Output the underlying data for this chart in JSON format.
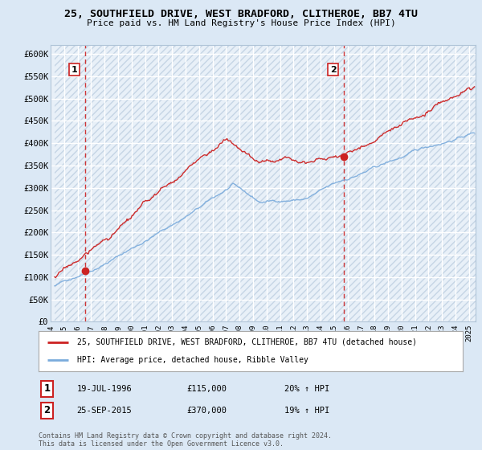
{
  "title1": "25, SOUTHFIELD DRIVE, WEST BRADFORD, CLITHEROE, BB7 4TU",
  "title2": "Price paid vs. HM Land Registry's House Price Index (HPI)",
  "ylim": [
    0,
    620000
  ],
  "yticks": [
    0,
    50000,
    100000,
    150000,
    200000,
    250000,
    300000,
    350000,
    400000,
    450000,
    500000,
    550000,
    600000
  ],
  "ytick_labels": [
    "£0",
    "£50K",
    "£100K",
    "£150K",
    "£200K",
    "£250K",
    "£300K",
    "£350K",
    "£400K",
    "£450K",
    "£500K",
    "£550K",
    "£600K"
  ],
  "xlim_start": 1994.3,
  "xlim_end": 2025.5,
  "sale1_date": 1996.54,
  "sale1_price": 115000,
  "sale2_date": 2015.73,
  "sale2_price": 370000,
  "hpi_color": "#7aabdc",
  "price_color": "#cc2222",
  "bg_color": "#dbe8f5",
  "plot_bg": "#e8f0f8",
  "grid_color": "#ffffff",
  "hatch_color": "#c5d5e5",
  "legend_label1": "25, SOUTHFIELD DRIVE, WEST BRADFORD, CLITHEROE, BB7 4TU (detached house)",
  "legend_label2": "HPI: Average price, detached house, Ribble Valley",
  "ann1_date_str": "19-JUL-1996",
  "ann1_price_str": "£115,000",
  "ann1_hpi_str": "20% ↑ HPI",
  "ann2_date_str": "25-SEP-2015",
  "ann2_price_str": "£370,000",
  "ann2_hpi_str": "19% ↑ HPI",
  "footer": "Contains HM Land Registry data © Crown copyright and database right 2024.\nThis data is licensed under the Open Government Licence v3.0."
}
